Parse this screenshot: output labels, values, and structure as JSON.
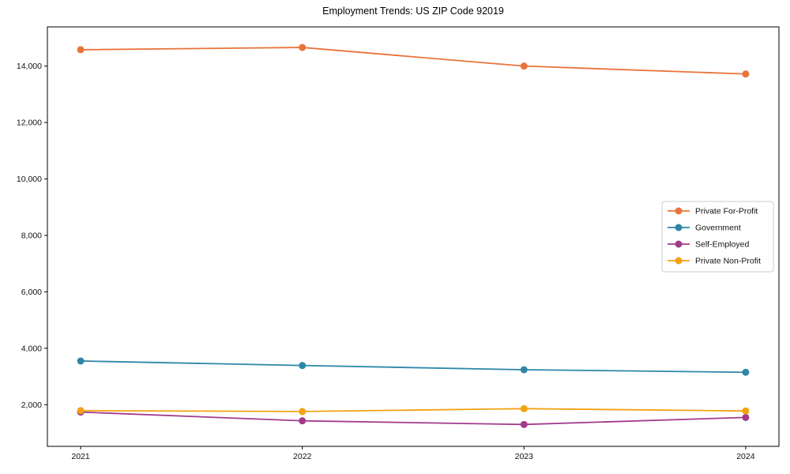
{
  "chart_data": {
    "type": "line",
    "title": "Employment Trends: US ZIP Code 92019",
    "x": [
      2021,
      2022,
      2023,
      2024
    ],
    "series": [
      {
        "name": "Private For-Profit",
        "color": "#E8743B",
        "values": [
          14580,
          14660,
          14000,
          13720
        ]
      },
      {
        "name": "Government",
        "color": "#2E87A8",
        "values": [
          3550,
          3390,
          3240,
          3150
        ]
      },
      {
        "name": "Self-Employed",
        "color": "#A23A8C",
        "values": [
          1740,
          1430,
          1300,
          1550
        ]
      },
      {
        "name": "Private Non-Profit",
        "color": "#F2A213",
        "values": [
          1790,
          1760,
          1860,
          1780
        ]
      }
    ],
    "xlabel": "",
    "ylabel": "",
    "xlim": [
      2020.85,
      2024.15
    ],
    "ylim": [
      525,
      15390
    ],
    "xticks": {
      "values": [
        2021,
        2022,
        2023,
        2024
      ],
      "labels": [
        "2021",
        "2022",
        "2023",
        "2024"
      ]
    },
    "yticks": {
      "values": [
        2000,
        4000,
        6000,
        8000,
        10000,
        12000,
        14000
      ],
      "labels": [
        "2,000",
        "4,000",
        "6,000",
        "8,000",
        "10,000",
        "12,000",
        "14,000"
      ]
    },
    "grid": false,
    "legend": {
      "position": "center-right",
      "entries": [
        "Private For-Profit",
        "Government",
        "Self-Employed",
        "Private Non-Profit"
      ]
    },
    "style": {
      "axis_color": "#000000",
      "tick_label_color": "#111111",
      "legend_border_color": "#cccccc",
      "legend_background": "#ffffff",
      "plot_background": "#ffffff"
    }
  }
}
